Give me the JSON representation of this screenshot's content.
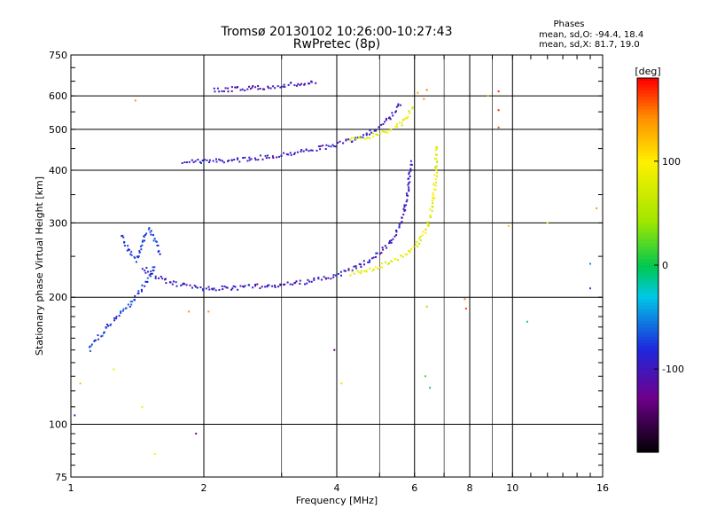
{
  "chart_data": {
    "type": "scatter",
    "title": "Tromsø 20130102 10:26:00-10:27:43",
    "subtitle": "RwPretec (8p)",
    "xlabel": "Frequency [MHz]",
    "ylabel": "Stationary phase Virtual Height [km]",
    "x_scale": "log",
    "y_scale": "log",
    "xlim": [
      1,
      16
    ],
    "ylim": [
      75,
      750
    ],
    "x_ticks": [
      1,
      2,
      4,
      6,
      8,
      10,
      16
    ],
    "x_tick_labels": [
      "1",
      "2",
      "4",
      "6",
      "8",
      "10",
      "16"
    ],
    "x_minor_gridlines": [
      3,
      5,
      7,
      9
    ],
    "y_ticks": [
      75,
      100,
      200,
      300,
      400,
      500,
      600,
      750
    ],
    "y_tick_labels": [
      "75",
      "100",
      "200",
      "300",
      "400",
      "500",
      "600",
      "750"
    ],
    "grid": true,
    "phases_box": {
      "heading": "Phases",
      "line_o": "mean, sd,O: -94.4, 18.4",
      "line_x": "mean, sd,X: 81.7, 19.0"
    },
    "colorbar": {
      "label": "[deg]",
      "range": [
        -180,
        180
      ],
      "ticks": [
        -100,
        0,
        100
      ],
      "tick_labels": [
        "-100",
        "0",
        "100"
      ],
      "colormap": "rainbow: black-purple-blue-cyan-green-yellow-orange-red"
    },
    "traces": [
      {
        "x": [
          1.8,
          1.95,
          2.1,
          2.3,
          2.5,
          2.8,
          3.1,
          3.4,
          3.7,
          4.0,
          4.3,
          4.6,
          5.0,
          5.3,
          5.6
        ],
        "y": [
          420,
          420,
          420,
          422,
          425,
          430,
          438,
          445,
          452,
          460,
          470,
          485,
          505,
          535,
          580
        ],
        "phase": -95
      },
      {
        "x": [
          2.1,
          2.4,
          2.7,
          3.0,
          3.3,
          3.6
        ],
        "y": [
          618,
          624,
          628,
          634,
          640,
          646
        ],
        "phase": -100
      },
      {
        "x": [
          4.3,
          4.7,
          5.0,
          5.3,
          5.6,
          5.8,
          6.0
        ],
        "y": [
          470,
          480,
          490,
          500,
          515,
          540,
          570
        ],
        "phase": 85
      },
      {
        "x": [
          1.45,
          1.55,
          1.65,
          1.8,
          2.0,
          2.3,
          2.6,
          3.0,
          3.4,
          3.8,
          4.2,
          4.6,
          5.0,
          5.3,
          5.5,
          5.7,
          5.8,
          5.9
        ],
        "y": [
          235,
          225,
          218,
          213,
          210,
          210,
          212,
          214,
          217,
          222,
          230,
          240,
          255,
          270,
          290,
          320,
          360,
          420
        ],
        "phase": -95
      },
      {
        "x": [
          4.3,
          4.7,
          5.2,
          5.7,
          6.1,
          6.4,
          6.6,
          6.7,
          6.75
        ],
        "y": [
          228,
          232,
          240,
          252,
          268,
          290,
          330,
          390,
          460
        ],
        "phase": 85
      },
      {
        "x": [
          1.1,
          1.15,
          1.22,
          1.3,
          1.38,
          1.45,
          1.5,
          1.55
        ],
        "y": [
          150,
          160,
          172,
          183,
          196,
          210,
          222,
          240
        ],
        "phase": -75
      },
      {
        "x": [
          1.3,
          1.35,
          1.4,
          1.5,
          1.55,
          1.6
        ],
        "y": [
          280,
          260,
          245,
          290,
          270,
          250
        ],
        "phase": -78
      }
    ],
    "scattered_points": [
      {
        "x": 1.02,
        "y": 105,
        "phase": -100
      },
      {
        "x": 1.05,
        "y": 125,
        "phase": 120
      },
      {
        "x": 1.25,
        "y": 135,
        "phase": 90
      },
      {
        "x": 1.45,
        "y": 110,
        "phase": 90
      },
      {
        "x": 1.85,
        "y": 185,
        "phase": 140
      },
      {
        "x": 2.05,
        "y": 185,
        "phase": 140
      },
      {
        "x": 1.92,
        "y": 95,
        "phase": -130
      },
      {
        "x": 1.4,
        "y": 585,
        "phase": 140
      },
      {
        "x": 1.55,
        "y": 85,
        "phase": 100
      },
      {
        "x": 3.95,
        "y": 150,
        "phase": -140
      },
      {
        "x": 4.1,
        "y": 125,
        "phase": 110
      },
      {
        "x": 6.4,
        "y": 190,
        "phase": 40
      },
      {
        "x": 6.35,
        "y": 130,
        "phase": 20
      },
      {
        "x": 6.5,
        "y": 122,
        "phase": -10
      },
      {
        "x": 7.8,
        "y": 198,
        "phase": 150
      },
      {
        "x": 7.85,
        "y": 188,
        "phase": 165
      },
      {
        "x": 9.3,
        "y": 615,
        "phase": 170
      },
      {
        "x": 9.3,
        "y": 555,
        "phase": 170
      },
      {
        "x": 9.3,
        "y": 505,
        "phase": 160
      },
      {
        "x": 8.8,
        "y": 600,
        "phase": 130
      },
      {
        "x": 9.8,
        "y": 295,
        "phase": 120
      },
      {
        "x": 10.8,
        "y": 175,
        "phase": -10
      },
      {
        "x": 12.0,
        "y": 300,
        "phase": 100
      },
      {
        "x": 15.0,
        "y": 240,
        "phase": -50
      },
      {
        "x": 15.0,
        "y": 210,
        "phase": -70
      },
      {
        "x": 15.5,
        "y": 325,
        "phase": 140
      },
      {
        "x": 6.1,
        "y": 610,
        "phase": 130
      },
      {
        "x": 6.3,
        "y": 590,
        "phase": 140
      },
      {
        "x": 6.4,
        "y": 620,
        "phase": 150
      }
    ]
  }
}
